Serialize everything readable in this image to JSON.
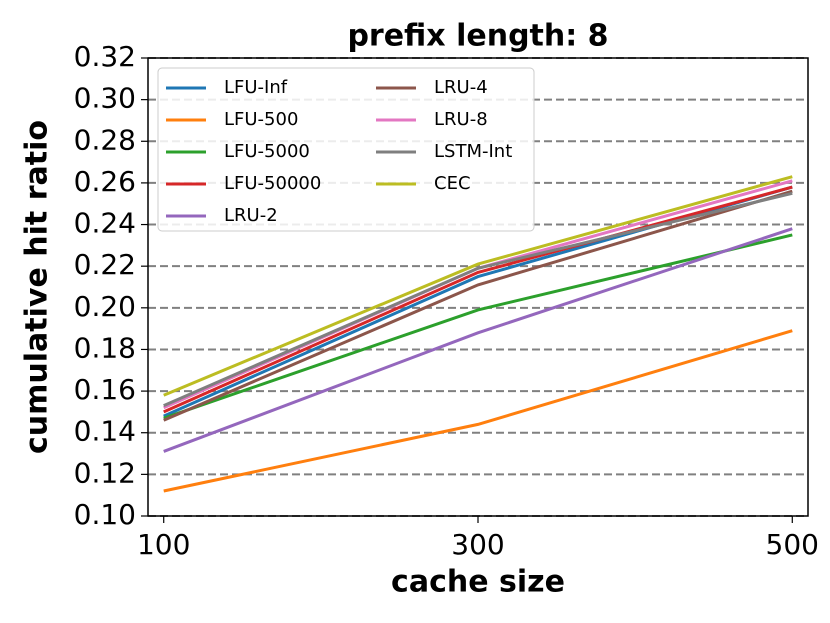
{
  "chart_data": {
    "type": "line",
    "title": "prefix length: 8",
    "x_label": "cache size",
    "y_label": "cumulative hit ratio",
    "x": [
      100,
      300,
      500
    ],
    "series": [
      {
        "name": "LFU-Inf",
        "color": "#1f77b4",
        "values": [
          0.148,
          0.215,
          0.258
        ]
      },
      {
        "name": "LFU-500",
        "color": "#ff7f0e",
        "values": [
          0.112,
          0.144,
          0.189
        ]
      },
      {
        "name": "LFU-5000",
        "color": "#2ca02c",
        "values": [
          0.147,
          0.199,
          0.235
        ]
      },
      {
        "name": "LFU-50000",
        "color": "#d62728",
        "values": [
          0.15,
          0.217,
          0.258
        ]
      },
      {
        "name": "LRU-2",
        "color": "#9467bd",
        "values": [
          0.131,
          0.188,
          0.238
        ]
      },
      {
        "name": "LRU-4",
        "color": "#8c564b",
        "values": [
          0.146,
          0.211,
          0.256
        ]
      },
      {
        "name": "LRU-8",
        "color": "#e377c2",
        "values": [
          0.152,
          0.219,
          0.261
        ]
      },
      {
        "name": "LSTM-Int",
        "color": "#7f7f7f",
        "values": [
          0.153,
          0.219,
          0.255
        ]
      },
      {
        "name": "CEC",
        "color": "#bcbd22",
        "values": [
          0.158,
          0.221,
          0.263
        ]
      }
    ],
    "xlim": [
      90,
      510
    ],
    "xticks": [
      100,
      300,
      500
    ],
    "ylim": [
      0.1,
      0.32
    ],
    "yticks": [
      {
        "value": 0.1,
        "label": "0.10"
      },
      0.12,
      0.14,
      0.16,
      0.18,
      {
        "value": 0.2,
        "label": "0.20"
      },
      0.22,
      0.24,
      0.26,
      0.28,
      {
        "value": 0.3,
        "label": "0.30"
      },
      0.32
    ],
    "grid": true,
    "legend": "upper left"
  }
}
